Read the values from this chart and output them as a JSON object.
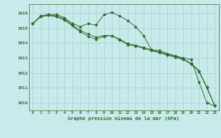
{
  "series1": [
    1015.3,
    1015.8,
    1015.9,
    1015.9,
    1015.7,
    1015.3,
    1015.1,
    1015.3,
    1015.2,
    1015.9,
    1016.05,
    1015.8,
    1015.5,
    1015.1,
    1014.5,
    1013.55,
    1013.5,
    1013.3,
    1013.15,
    1013.0,
    1012.9,
    1011.4,
    1010.0,
    1009.8
  ],
  "series2": [
    1015.3,
    1015.8,
    1015.9,
    1015.8,
    1015.6,
    1015.2,
    1014.85,
    1014.6,
    1014.4,
    1014.5,
    1014.5,
    1014.25,
    1013.95,
    1013.85,
    1013.7,
    1013.55,
    1013.4,
    1013.25,
    1013.1,
    1012.95,
    1012.65,
    1012.15,
    1011.05,
    1009.8
  ],
  "series3": [
    1015.3,
    1015.75,
    1015.85,
    1015.75,
    1015.55,
    1015.15,
    1014.75,
    1014.45,
    1014.25,
    1014.45,
    1014.5,
    1014.2,
    1013.9,
    1013.8,
    1013.65,
    1013.5,
    1013.35,
    1013.2,
    1013.05,
    1012.9,
    1012.6,
    1012.1,
    1011.0,
    1009.8
  ],
  "x": [
    0,
    1,
    2,
    3,
    4,
    5,
    6,
    7,
    8,
    9,
    10,
    11,
    12,
    13,
    14,
    15,
    16,
    17,
    18,
    19,
    20,
    21,
    22,
    23
  ],
  "line_color": "#2d6a2d",
  "bg_color": "#c8eaea",
  "grid_color": "#aacccc",
  "xlabel": "Graphe pression niveau de la mer (hPa)",
  "ylim_min": 1009.5,
  "ylim_max": 1016.6,
  "yticks": [
    1010,
    1011,
    1012,
    1013,
    1014,
    1015,
    1016
  ]
}
